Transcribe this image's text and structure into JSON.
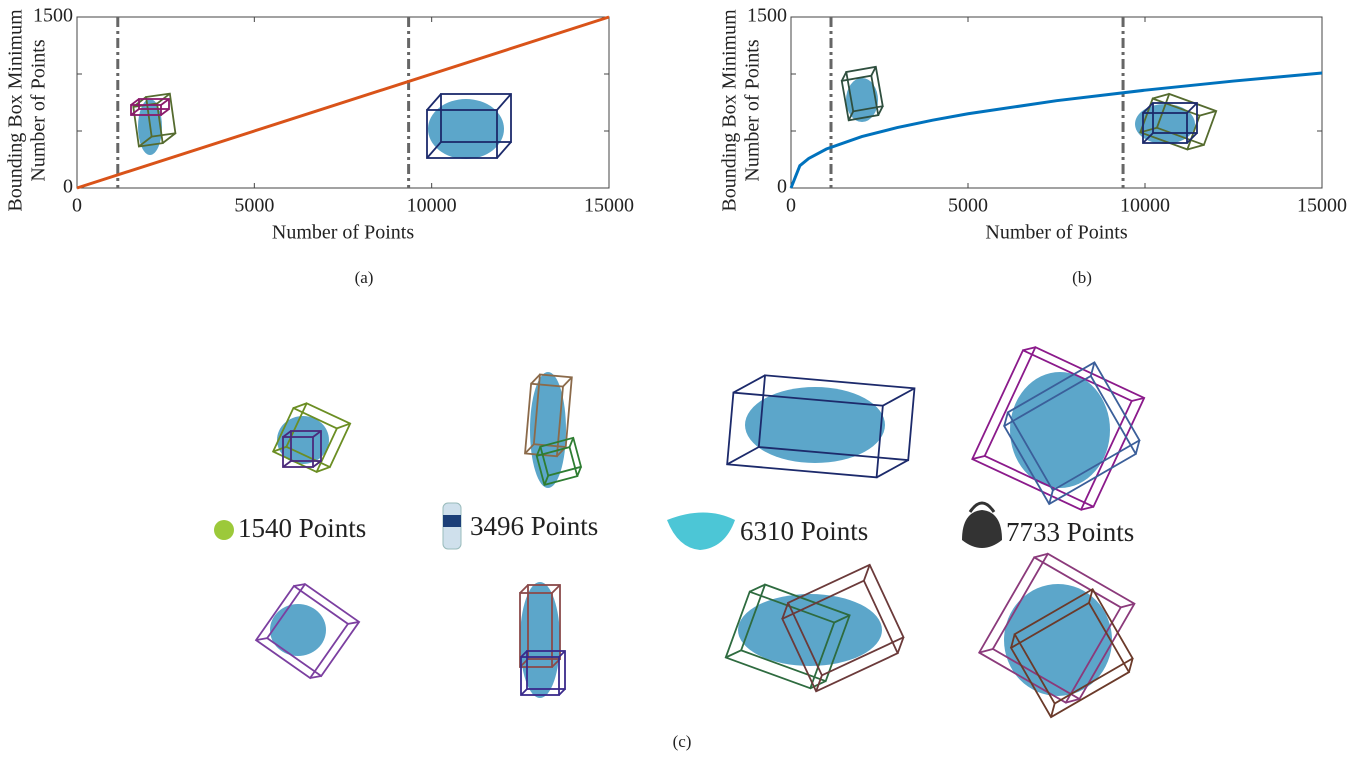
{
  "chart_data": [
    {
      "type": "line",
      "caption": "(a)",
      "xlabel": "Number of Points",
      "ylabel": [
        "Bounding Box Minimum",
        "Number of Points"
      ],
      "x": [
        0,
        15000
      ],
      "values": [
        0,
        1500
      ],
      "color": "#d95319",
      "xlim": [
        0,
        15000
      ],
      "ylim": [
        0,
        1500
      ],
      "xticks": [
        0,
        5000,
        10000,
        15000
      ],
      "yticks": [
        0,
        1500
      ],
      "yminor": [
        500,
        1000
      ],
      "vlines": [
        1150,
        9350
      ]
    },
    {
      "type": "line",
      "caption": "(b)",
      "xlabel": "Number of Points",
      "ylabel": [
        "Bounding Box Minimum",
        "Number of Points"
      ],
      "x": [
        0,
        250,
        500,
        1000,
        2000,
        3000,
        4000,
        5000,
        7500,
        10000,
        12500,
        15000
      ],
      "values": [
        0,
        196,
        259,
        342,
        451,
        530,
        595,
        651,
        766,
        858,
        938,
        1009
      ],
      "color": "#0072bd",
      "xlim": [
        0,
        15000
      ],
      "ylim": [
        0,
        1500
      ],
      "xticks": [
        0,
        5000,
        10000,
        15000
      ],
      "yticks": [
        0,
        1500
      ],
      "yminor": [
        500,
        1000
      ],
      "vlines": [
        1130,
        9380
      ]
    }
  ],
  "panel_c": {
    "caption": "(c)",
    "objects": [
      {
        "label": "1540 Points"
      },
      {
        "label": "3496 Points"
      },
      {
        "label": "6310 Points"
      },
      {
        "label": "7733 Points"
      }
    ]
  }
}
